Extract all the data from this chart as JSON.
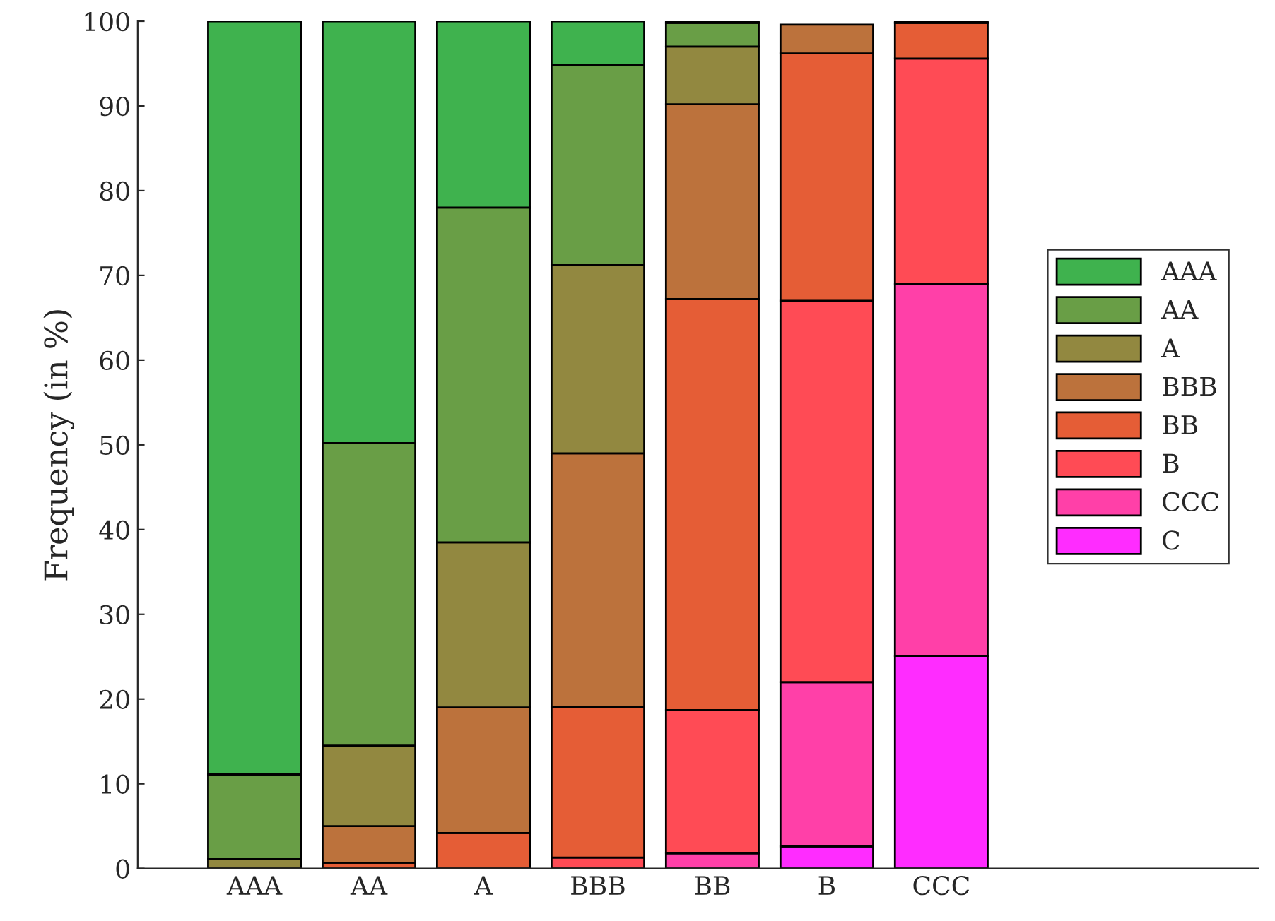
{
  "chart_data": {
    "type": "bar",
    "stacked": true,
    "ylabel": "Frequency (in %)",
    "categories": [
      "AAA",
      "AA",
      "A",
      "BBB",
      "BB",
      "B",
      "CCC"
    ],
    "ylim": [
      0,
      100
    ],
    "yticks": [
      0,
      10,
      20,
      30,
      40,
      50,
      60,
      70,
      80,
      90,
      100
    ],
    "grid": false,
    "legend": "right",
    "series": [
      {
        "name": "C",
        "color": "#ff2cff",
        "values": [
          null,
          null,
          null,
          null,
          null,
          2.6,
          25.1
        ]
      },
      {
        "name": "CCC",
        "color": "#ff40a8",
        "values": [
          null,
          null,
          null,
          null,
          1.8,
          19.4,
          43.9
        ]
      },
      {
        "name": "B",
        "color": "#ff4b55",
        "values": [
          null,
          null,
          null,
          1.3,
          16.9,
          45.0,
          26.6
        ]
      },
      {
        "name": "BB",
        "color": "#e55d36",
        "values": [
          null,
          0.7,
          4.2,
          17.8,
          48.5,
          29.2,
          4.2
        ]
      },
      {
        "name": "BBB",
        "color": "#bc723c",
        "values": [
          null,
          4.3,
          14.8,
          29.9,
          23.0,
          3.4,
          0.2
        ]
      },
      {
        "name": "A",
        "color": "#928840",
        "values": [
          1.1,
          9.5,
          19.5,
          22.2,
          6.8,
          null,
          null
        ]
      },
      {
        "name": "AA",
        "color": "#699e46",
        "values": [
          10.0,
          35.7,
          39.5,
          23.6,
          2.8,
          null,
          null
        ]
      },
      {
        "name": "AAA",
        "color": "#3fb24e",
        "values": [
          88.9,
          49.8,
          22.0,
          5.2,
          0.2,
          null,
          null
        ]
      }
    ]
  }
}
